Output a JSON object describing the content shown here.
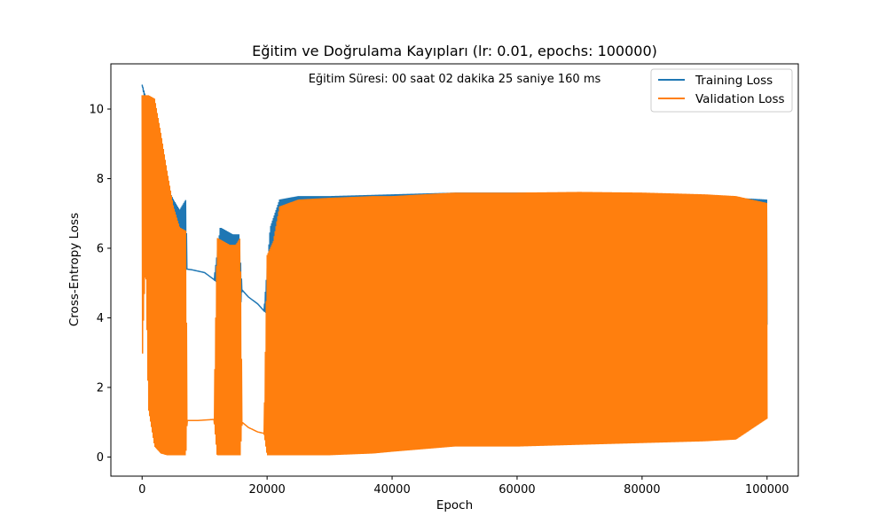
{
  "chart_data": {
    "type": "line",
    "title": "Eğitim ve Doğrulama Kayıpları (lr: 0.01, epochs: 100000)",
    "annotation": "Eğitim Süresi: 00 saat 02 dakika 25 saniye 160 ms",
    "xlabel": "Epoch",
    "ylabel": "Cross-Entropy Loss",
    "xlim": [
      -5000,
      105000
    ],
    "ylim": [
      -0.55,
      11.3
    ],
    "xticks": [
      0,
      20000,
      40000,
      60000,
      80000,
      100000
    ],
    "xtick_labels": [
      "0",
      "20000",
      "40000",
      "60000",
      "80000",
      "100000"
    ],
    "yticks": [
      0,
      2,
      4,
      6,
      8,
      10
    ],
    "ytick_labels": [
      "0",
      "2",
      "4",
      "6",
      "8",
      "10"
    ],
    "grid": false,
    "legend_position": "top-right",
    "series": [
      {
        "name": "Training Loss",
        "color": "#1f77b4",
        "style": "oscillating-band",
        "x": [
          0,
          500,
          1000,
          2000,
          3000,
          4000,
          5000,
          6000,
          7000,
          7200,
          8000,
          10000,
          11500,
          12500,
          13500,
          14500,
          15500,
          16000,
          17000,
          18500,
          19500,
          20500,
          22000,
          25000,
          30000,
          40000,
          50000,
          60000,
          70000,
          80000,
          90000,
          100000
        ],
        "upper": [
          10.7,
          10.4,
          10.0,
          9.6,
          8.9,
          7.8,
          7.4,
          7.1,
          7.4,
          5.4,
          5.38,
          5.3,
          5.1,
          6.6,
          6.5,
          6.4,
          6.4,
          4.8,
          4.6,
          4.4,
          4.2,
          6.6,
          7.4,
          7.5,
          7.5,
          7.55,
          7.6,
          7.6,
          7.6,
          7.55,
          7.5,
          7.4
        ],
        "lower": [
          10.7,
          10.2,
          9.2,
          7.8,
          6.8,
          6.0,
          5.6,
          5.4,
          5.4,
          5.4,
          5.38,
          5.3,
          5.1,
          4.9,
          4.6,
          4.2,
          3.8,
          4.8,
          4.6,
          4.4,
          4.2,
          4.0,
          3.9,
          3.8,
          3.8,
          3.8,
          3.8,
          3.8,
          3.8,
          3.8,
          3.8,
          3.8
        ]
      },
      {
        "name": "Validation Loss",
        "color": "#ff7f0e",
        "style": "oscillating-band",
        "x": [
          0,
          300,
          600,
          1000,
          2000,
          3000,
          4000,
          5000,
          6000,
          7000,
          7200,
          9000,
          11500,
          12000,
          13000,
          14000,
          15000,
          15700,
          16000,
          17000,
          18500,
          19500,
          20000,
          21000,
          22000,
          25000,
          30000,
          37000,
          40000,
          50000,
          60000,
          70000,
          80000,
          90000,
          95000,
          100000
        ],
        "upper": [
          10.4,
          10.4,
          10.4,
          10.4,
          10.3,
          9.3,
          8.2,
          7.2,
          6.6,
          6.5,
          1.05,
          1.05,
          1.08,
          6.3,
          6.2,
          6.1,
          6.1,
          6.3,
          1.0,
          0.85,
          0.72,
          0.68,
          5.8,
          6.2,
          7.2,
          7.4,
          7.45,
          7.5,
          7.5,
          7.6,
          7.6,
          7.62,
          7.6,
          7.55,
          7.5,
          7.3
        ],
        "lower": [
          2.5,
          4.5,
          5.5,
          1.4,
          0.3,
          0.1,
          0.05,
          0.05,
          0.05,
          0.05,
          1.05,
          1.05,
          1.08,
          0.05,
          0.05,
          0.05,
          0.05,
          0.05,
          1.0,
          0.85,
          0.72,
          0.68,
          0.05,
          0.05,
          0.05,
          0.05,
          0.05,
          0.1,
          0.15,
          0.3,
          0.3,
          0.35,
          0.4,
          0.45,
          0.5,
          1.1
        ]
      }
    ]
  }
}
